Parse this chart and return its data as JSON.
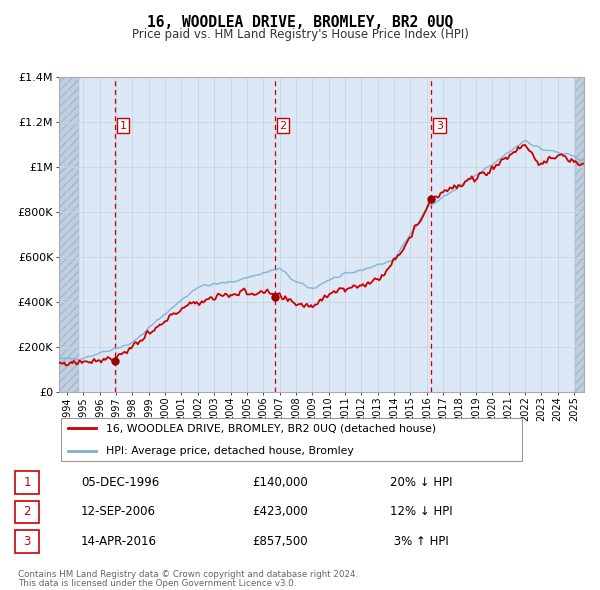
{
  "title": "16, WOODLEA DRIVE, BROMLEY, BR2 0UQ",
  "subtitle": "Price paid vs. HM Land Registry's House Price Index (HPI)",
  "plot_bg_color": "#dce8f5",
  "hatch_color": "#c0cfe0",
  "red_line_color": "#cc0000",
  "blue_line_color": "#7bafd4",
  "transactions": [
    {
      "num": 1,
      "date": "05-DEC-1996",
      "year": 1996.92,
      "price": 140000,
      "hpi_pct": "20% ↓ HPI"
    },
    {
      "num": 2,
      "date": "12-SEP-2006",
      "year": 2006.7,
      "price": 423000,
      "hpi_pct": "12% ↓ HPI"
    },
    {
      "num": 3,
      "date": "14-APR-2016",
      "year": 2016.28,
      "price": 857500,
      "hpi_pct": "3% ↑ HPI"
    }
  ],
  "legend_line1": "16, WOODLEA DRIVE, BROMLEY, BR2 0UQ (detached house)",
  "legend_line2": "HPI: Average price, detached house, Bromley",
  "footer1": "Contains HM Land Registry data © Crown copyright and database right 2024.",
  "footer2": "This data is licensed under the Open Government Licence v3.0.",
  "ylim": [
    0,
    1400000
  ],
  "yticks": [
    0,
    200000,
    400000,
    600000,
    800000,
    1000000,
    1200000,
    1400000
  ],
  "xlim_start": 1993.5,
  "xlim_end": 2025.6,
  "hatch_left_end": 1994.75,
  "hatch_right_start": 2025.08
}
